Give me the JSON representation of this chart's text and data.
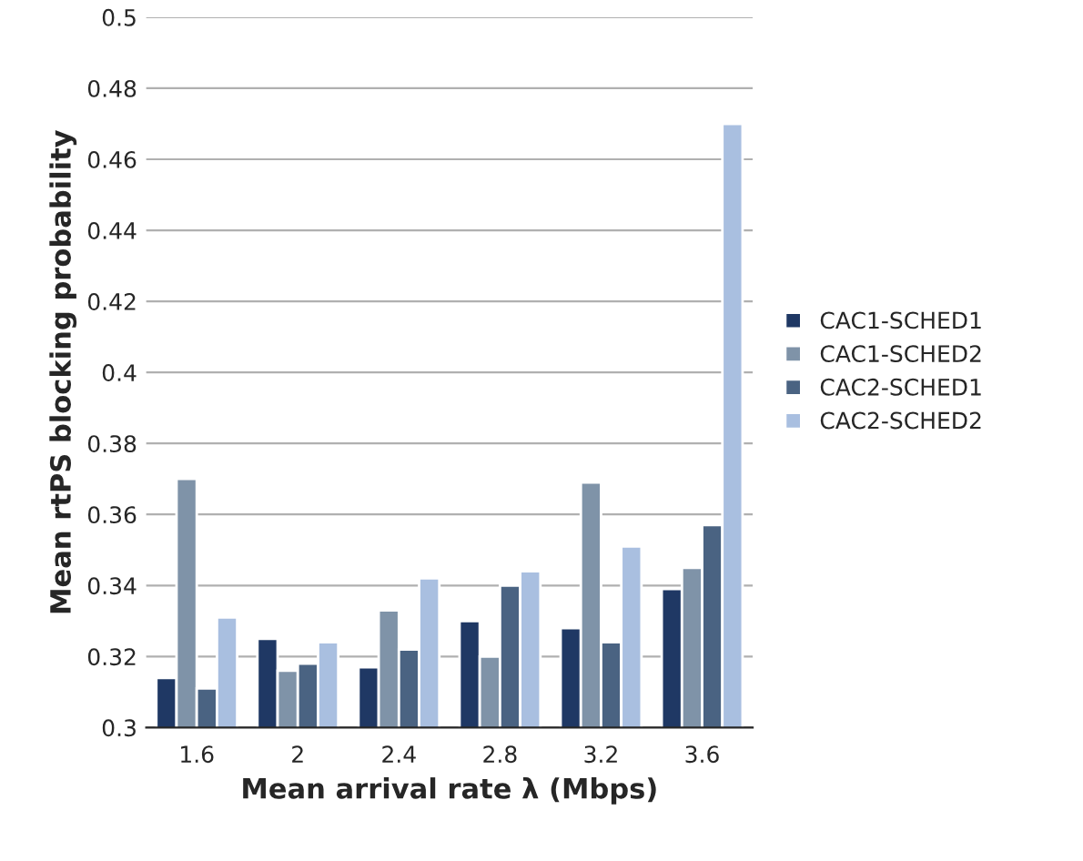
{
  "chart_data": {
    "type": "bar",
    "xlabel": "Mean arrival rate λ (Mbps)",
    "ylabel": "Mean rtPS blocking probability",
    "categories": [
      "1.6",
      "2",
      "2.4",
      "2.8",
      "3.2",
      "3.6"
    ],
    "series": [
      {
        "name": "CAC1-SCHED1",
        "color": "#1f3864",
        "values": [
          0.314,
          0.325,
          0.317,
          0.33,
          0.328,
          0.339
        ]
      },
      {
        "name": "CAC1-SCHED2",
        "color": "#7f93a8",
        "values": [
          0.37,
          0.316,
          0.333,
          0.32,
          0.369,
          0.345
        ]
      },
      {
        "name": "CAC2-SCHED1",
        "color": "#4a6382",
        "values": [
          0.311,
          0.318,
          0.322,
          0.34,
          0.324,
          0.357
        ]
      },
      {
        "name": "CAC2-SCHED2",
        "color": "#a9bfe0",
        "values": [
          0.331,
          0.324,
          0.342,
          0.344,
          0.351,
          0.47
        ]
      }
    ],
    "ylim": [
      0.3,
      0.5
    ],
    "yticks": [
      0.3,
      0.32,
      0.34,
      0.36,
      0.38,
      0.4,
      0.42,
      0.44,
      0.46,
      0.48,
      0.5
    ],
    "grid": "y",
    "legend": "right"
  }
}
